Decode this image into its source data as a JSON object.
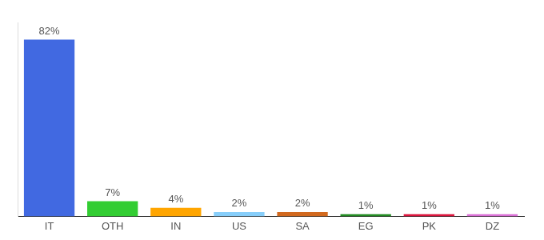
{
  "chart_data": {
    "type": "bar",
    "categories": [
      "IT",
      "OTH",
      "IN",
      "US",
      "SA",
      "EG",
      "PK",
      "DZ"
    ],
    "values": [
      82,
      7,
      4,
      2,
      2,
      1,
      1,
      1
    ],
    "value_labels": [
      "82%",
      "7%",
      "4%",
      "2%",
      "2%",
      "1%",
      "1%",
      "1%"
    ],
    "colors": [
      "#4169e1",
      "#32cd32",
      "#ffa500",
      "#87cefa",
      "#d2691e",
      "#228b22",
      "#dc143c",
      "#da70d6"
    ],
    "ylim": [
      0,
      90
    ],
    "grid": false,
    "data_labels": true,
    "tick_labels": "x"
  }
}
